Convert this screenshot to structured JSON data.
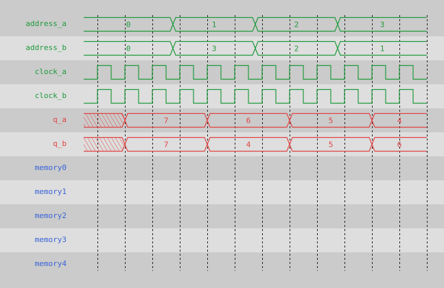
{
  "colors": {
    "signal": "#1f9a3c",
    "data": "#e04444",
    "memory": "#3a64d8",
    "grid": "#222222"
  },
  "clock_cycles": 12,
  "signals": [
    {
      "name": "address_a",
      "kind": "bus",
      "color": "signal",
      "segments": [
        {
          "value": "0",
          "cycles": 3.25
        },
        {
          "value": "1",
          "cycles": 3
        },
        {
          "value": "2",
          "cycles": 3
        },
        {
          "value": "3",
          "cycles": 3.25
        }
      ]
    },
    {
      "name": "address_b",
      "kind": "bus",
      "color": "signal",
      "segments": [
        {
          "value": "0",
          "cycles": 3.25
        },
        {
          "value": "3",
          "cycles": 3
        },
        {
          "value": "2",
          "cycles": 3
        },
        {
          "value": "1",
          "cycles": 3.25
        }
      ]
    },
    {
      "name": "clock_a",
      "kind": "clock",
      "color": "signal"
    },
    {
      "name": "clock_b",
      "kind": "clock",
      "color": "signal"
    },
    {
      "name": "q_a",
      "kind": "bus",
      "color": "data",
      "segments": [
        {
          "value": "",
          "unknown": true,
          "cycles": 1.5
        },
        {
          "value": "7",
          "cycles": 3
        },
        {
          "value": "6",
          "cycles": 3
        },
        {
          "value": "5",
          "cycles": 3
        },
        {
          "value": "4",
          "cycles": 2
        }
      ]
    },
    {
      "name": "q_b",
      "kind": "bus",
      "color": "data",
      "segments": [
        {
          "value": "",
          "unknown": true,
          "cycles": 1.5
        },
        {
          "value": "7",
          "cycles": 3
        },
        {
          "value": "4",
          "cycles": 3
        },
        {
          "value": "5",
          "cycles": 3
        },
        {
          "value": "6",
          "cycles": 2
        }
      ]
    },
    {
      "name": "memory0",
      "kind": "empty",
      "color": "memory"
    },
    {
      "name": "memory1",
      "kind": "empty",
      "color": "memory"
    },
    {
      "name": "memory2",
      "kind": "empty",
      "color": "memory"
    },
    {
      "name": "memory3",
      "kind": "empty",
      "color": "memory"
    },
    {
      "name": "memory4",
      "kind": "empty",
      "color": "memory"
    }
  ]
}
